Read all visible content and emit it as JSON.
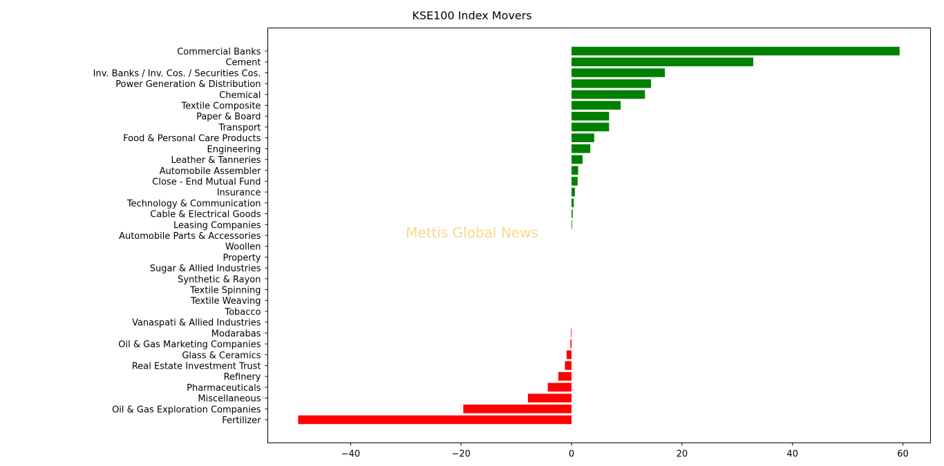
{
  "chart_data": {
    "type": "bar",
    "orientation": "horizontal",
    "title": "KSE100 Index Movers",
    "xlabel": "",
    "ylabel": "",
    "xlim": [
      -55,
      65
    ],
    "xticks": [
      -40,
      -20,
      0,
      20,
      40,
      60
    ],
    "grid": false,
    "watermark": "Mettis Global News",
    "colors": {
      "positive": "#008000",
      "negative": "#ff0000",
      "watermark": "#f5d98a"
    },
    "categories": [
      "Commercial Banks",
      "Cement",
      "Inv. Banks / Inv. Cos. / Securities Cos.",
      "Power Generation & Distribution",
      "Chemical",
      "Textile Composite",
      "Paper & Board",
      "Transport",
      "Food & Personal Care Products",
      "Engineering",
      "Leather & Tanneries",
      "Automobile Assembler",
      "Close - End Mutual Fund",
      "Insurance",
      "Technology & Communication",
      "Cable & Electrical Goods",
      "Leasing Companies",
      "Automobile Parts & Accessories",
      "Woollen",
      "Property",
      "Sugar & Allied Industries",
      "Synthetic & Rayon",
      "Textile Spinning",
      "Textile Weaving",
      "Tobacco",
      "Vanaspati & Allied Industries",
      "Modarabas",
      "Oil & Gas Marketing Companies",
      "Glass & Ceramics",
      "Real Estate Investment Trust",
      "Refinery",
      "Pharmaceuticals",
      "Miscellaneous",
      "Oil & Gas Exploration Companies",
      "Fertilizer"
    ],
    "values": [
      59.4,
      32.9,
      16.9,
      14.4,
      13.3,
      8.9,
      6.8,
      6.8,
      4.1,
      3.4,
      2.0,
      1.2,
      1.1,
      0.6,
      0.4,
      0.2,
      0.1,
      0,
      0,
      0,
      0,
      0,
      0,
      0,
      0,
      0,
      -0.1,
      -0.2,
      -0.9,
      -1.2,
      -2.4,
      -4.3,
      -7.9,
      -19.6,
      -49.5
    ]
  }
}
